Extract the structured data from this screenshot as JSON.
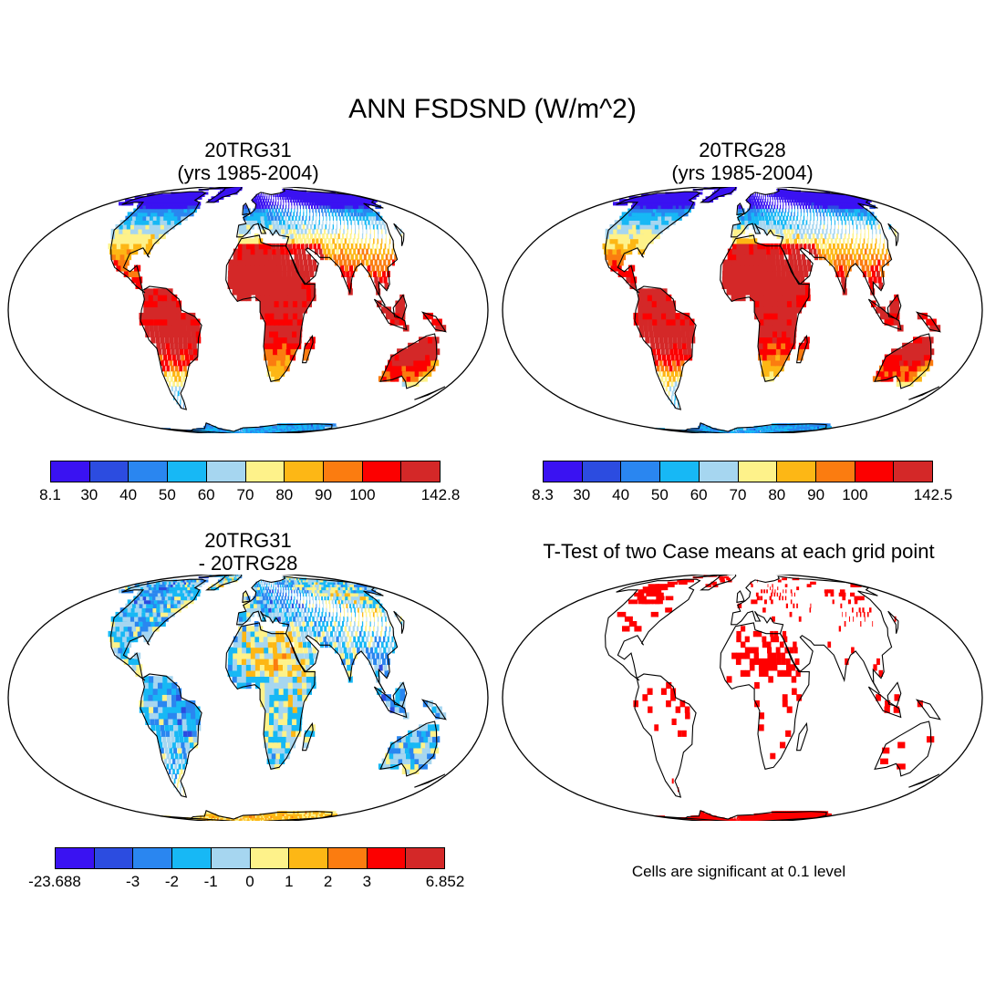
{
  "figure": {
    "title": "ANN FSDSND (W/m^2)"
  },
  "panels": [
    {
      "title_line1": "20TRG31",
      "title_line2": "(yrs 1985-2004)",
      "field": "absolute",
      "colorbar": {
        "colors": [
          "#3a12f2",
          "#2c4ce0",
          "#2a86f0",
          "#17b8f5",
          "#a6d6f0",
          "#fef28a",
          "#fdb715",
          "#fb7c10",
          "#fc0000",
          "#d42828"
        ],
        "labels": [
          "8.1",
          "30",
          "40",
          "50",
          "60",
          "70",
          "80",
          "90",
          "100",
          "142.8"
        ]
      }
    },
    {
      "title_line1": "20TRG28",
      "title_line2": "(yrs 1985-2004)",
      "field": "absolute",
      "colorbar": {
        "colors": [
          "#3a12f2",
          "#2c4ce0",
          "#2a86f0",
          "#17b8f5",
          "#a6d6f0",
          "#fef28a",
          "#fdb715",
          "#fb7c10",
          "#fc0000",
          "#d42828"
        ],
        "labels": [
          "8.3",
          "30",
          "40",
          "50",
          "60",
          "70",
          "80",
          "90",
          "100",
          "142.5"
        ]
      }
    },
    {
      "title_line1": "20TRG31",
      "title_line2": "- 20TRG28",
      "field": "difference",
      "colorbar": {
        "colors": [
          "#3a12f2",
          "#2c4ce0",
          "#2a86f0",
          "#17b8f5",
          "#a6d6f0",
          "#fef28a",
          "#fdb715",
          "#fb7c10",
          "#fc0000",
          "#d42828"
        ],
        "labels": [
          "-23.688",
          "-3",
          "-2",
          "-1",
          "0",
          "1",
          "2",
          "3",
          "6.852"
        ]
      }
    },
    {
      "title_line1": "T-Test of two Case means at each grid point",
      "field": "significance",
      "significance_color": "#ff0000",
      "note": "Cells are significant at 0.1 level"
    }
  ]
}
